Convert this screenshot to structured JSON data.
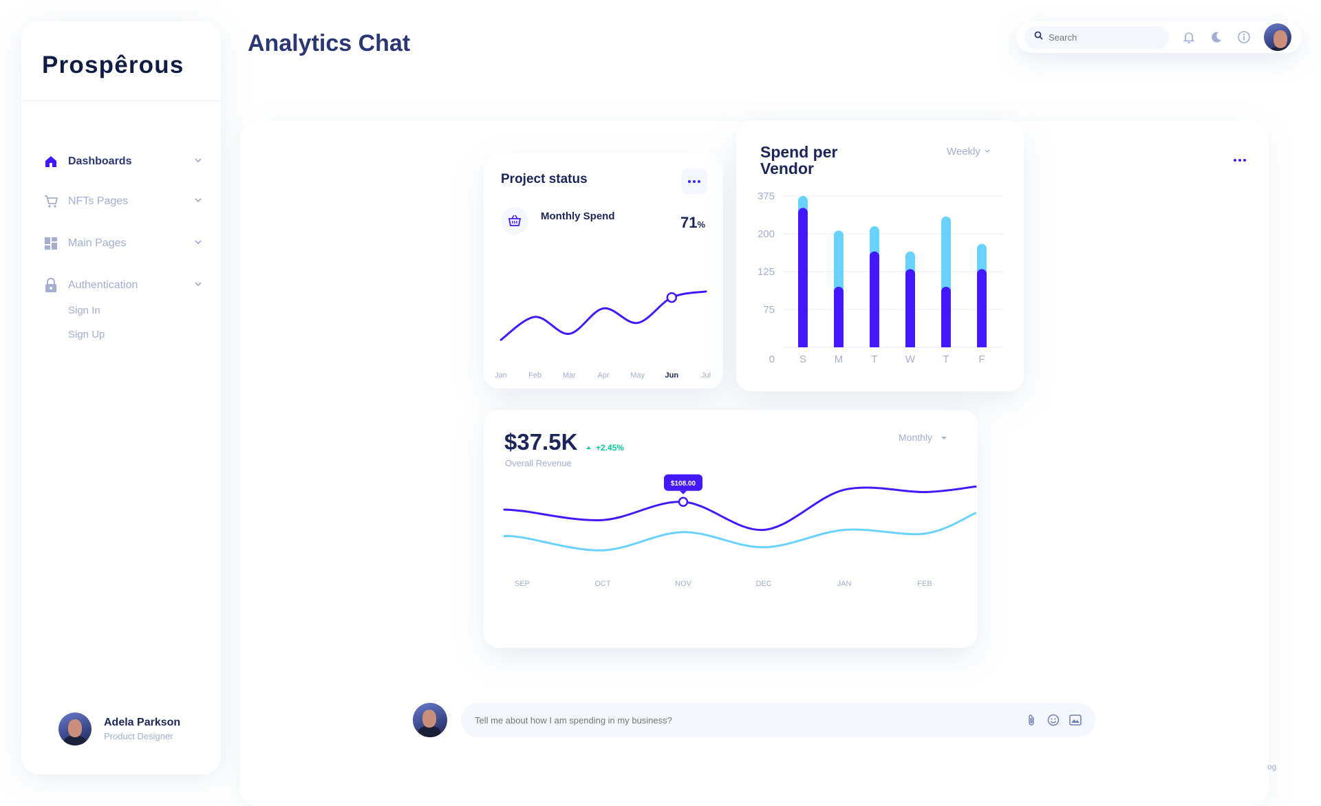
{
  "app": {
    "logo": "Prospêrous",
    "page_title": "Analytics Chat"
  },
  "sidebar": {
    "items": [
      {
        "label": "Dashboards",
        "icon": "home-icon",
        "active": true
      },
      {
        "label": "NFTs Pages",
        "icon": "cart-icon",
        "active": false
      },
      {
        "label": "Main Pages",
        "icon": "grid-icon",
        "active": false
      },
      {
        "label": "Authentication",
        "icon": "lock-icon",
        "active": false
      }
    ],
    "auth_sub_items": [
      "Sign In",
      "Sign Up"
    ],
    "profile": {
      "name": "Adela Parkson",
      "role": "Product Designer"
    }
  },
  "topbar": {
    "search_placeholder": "Search",
    "icons": [
      "bell-icon",
      "moon-icon",
      "info-icon"
    ]
  },
  "project_status": {
    "title": "Project status",
    "metric_label": "Monthly Spend",
    "metric_value": "71",
    "metric_unit": "%",
    "months": [
      "Jan",
      "Feb",
      "Mar",
      "Apr",
      "May",
      "Jun",
      "Jul"
    ],
    "highlight_month": "Jun"
  },
  "vendor_card": {
    "title_line1": "Spend per",
    "title_line2": "Vendor",
    "period": "Weekly"
  },
  "revenue": {
    "value": "$37.5K",
    "change": "+2.45%",
    "label": "Overall Revenue",
    "period": "Monthly",
    "tooltip": "$108.00"
  },
  "chat": {
    "placeholder": "Tell me about how I am spending in my business?"
  },
  "footer_fragment": "og",
  "colors": {
    "primary": "#4318ff",
    "secondary": "#6ad2ff",
    "text": "#2b3674",
    "muted": "#a3aed0",
    "green": "#05cd99"
  },
  "chart_data": [
    {
      "type": "line",
      "title": "Project status",
      "categories": [
        "Jan",
        "Feb",
        "Mar",
        "Apr",
        "May",
        "Jun",
        "Jul"
      ],
      "series": [
        {
          "values": [
            10,
            48,
            20,
            62,
            38,
            80,
            90
          ]
        }
      ]
    },
    {
      "type": "bar",
      "title": "Spend per Vendor",
      "stacked": true,
      "categories": [
        "S",
        "M",
        "T",
        "W",
        "T",
        "F"
      ],
      "yticks": [
        "0",
        "75",
        "125",
        "200",
        "375"
      ],
      "series": [
        {
          "values": [
            320,
            105,
            165,
            130,
            105,
            130
          ]
        },
        {
          "values": [
            65,
            110,
            70,
            35,
            175,
            50
          ]
        }
      ]
    },
    {
      "type": "line",
      "title": "",
      "categories": [
        "SEP",
        "OCT",
        "NOV",
        "DEC",
        "JAN",
        "FEB"
      ],
      "series": [
        {
          "values": [
            60,
            48,
            72,
            35,
            88,
            85
          ]
        },
        {
          "values": [
            25,
            8,
            32,
            12,
            35,
            30
          ]
        }
      ]
    }
  ]
}
